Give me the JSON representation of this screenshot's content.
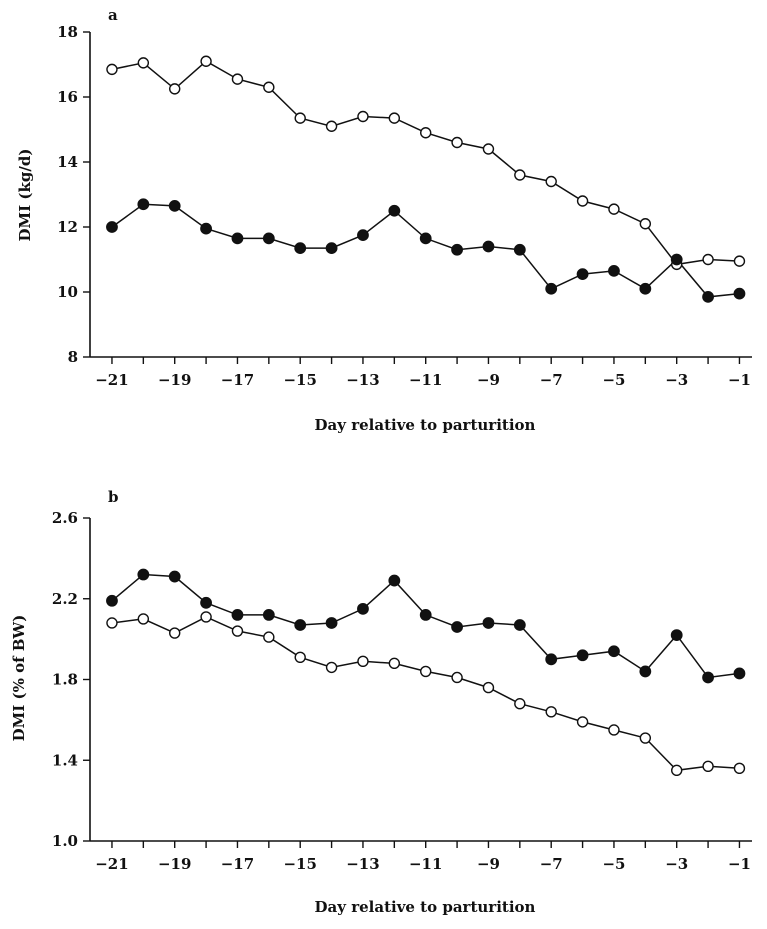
{
  "chart_data": [
    {
      "type": "line",
      "panel_label": "a",
      "xlabel": "Day relative to parturition",
      "ylabel": "DMI (kg/d)",
      "xlim": [
        -21.7,
        -0.6
      ],
      "ylim": [
        8,
        18
      ],
      "x_ticks": [
        -21,
        -20,
        -19,
        -18,
        -17,
        -16,
        -15,
        -14,
        -13,
        -12,
        -11,
        -10,
        -9,
        -8,
        -7,
        -6,
        -5,
        -4,
        -3,
        -2,
        -1
      ],
      "x_tick_labels": [
        "−21",
        "−19",
        "−17",
        "−15",
        "−13",
        "−11",
        "−9",
        "−7",
        "−5",
        "−3",
        "−1"
      ],
      "x_tick_label_values": [
        -21,
        -19,
        -17,
        -15,
        -13,
        -11,
        -9,
        -7,
        -5,
        -3,
        -1
      ],
      "y_ticks": [
        8,
        10,
        12,
        14,
        16,
        18
      ],
      "y_tick_labels": [
        "8",
        "10",
        "12",
        "14",
        "16",
        "18"
      ],
      "x": [
        -21,
        -20,
        -19,
        -18,
        -17,
        -16,
        -15,
        -14,
        -13,
        -12,
        -11,
        -10,
        -9,
        -8,
        -7,
        -6,
        -5,
        -4,
        -3,
        -2,
        -1
      ],
      "series": [
        {
          "marker": "open-circle",
          "values": [
            16.85,
            17.05,
            16.25,
            17.1,
            16.55,
            16.3,
            15.35,
            15.1,
            15.4,
            15.35,
            14.9,
            14.6,
            14.4,
            13.6,
            13.4,
            12.8,
            12.55,
            12.1,
            10.85,
            11.0,
            10.95
          ]
        },
        {
          "marker": "filled-circle",
          "values": [
            12.0,
            12.7,
            12.65,
            11.95,
            11.65,
            11.65,
            11.35,
            11.35,
            11.75,
            12.5,
            11.65,
            11.3,
            11.4,
            11.3,
            10.1,
            10.55,
            10.65,
            10.1,
            11.0,
            9.85,
            9.95
          ]
        }
      ]
    },
    {
      "type": "line",
      "panel_label": "b",
      "xlabel": "Day relative to parturition",
      "ylabel": "DMI (% of BW)",
      "xlim": [
        -21.7,
        -0.6
      ],
      "ylim": [
        1.0,
        2.6
      ],
      "x_ticks": [
        -21,
        -20,
        -19,
        -18,
        -17,
        -16,
        -15,
        -14,
        -13,
        -12,
        -11,
        -10,
        -9,
        -8,
        -7,
        -6,
        -5,
        -4,
        -3,
        -2,
        -1
      ],
      "x_tick_labels": [
        "−21",
        "−19",
        "−17",
        "−15",
        "−13",
        "−11",
        "−9",
        "−7",
        "−5",
        "−3",
        "−1"
      ],
      "x_tick_label_values": [
        -21,
        -19,
        -17,
        -15,
        -13,
        -11,
        -9,
        -7,
        -5,
        -3,
        -1
      ],
      "y_ticks": [
        1.0,
        1.4,
        1.8,
        2.2,
        2.6
      ],
      "y_tick_labels": [
        "1.0",
        "1.4",
        "1.8",
        "2.2",
        "2.6"
      ],
      "x": [
        -21,
        -20,
        -19,
        -18,
        -17,
        -16,
        -15,
        -14,
        -13,
        -12,
        -11,
        -10,
        -9,
        -8,
        -7,
        -6,
        -5,
        -4,
        -3,
        -2,
        -1
      ],
      "series": [
        {
          "marker": "filled-circle",
          "values": [
            2.19,
            2.32,
            2.31,
            2.18,
            2.12,
            2.12,
            2.07,
            2.08,
            2.15,
            2.29,
            2.12,
            2.06,
            2.08,
            2.07,
            1.9,
            1.92,
            1.94,
            1.84,
            2.02,
            1.81,
            1.83
          ]
        },
        {
          "marker": "open-circle",
          "values": [
            2.08,
            2.1,
            2.03,
            2.11,
            2.04,
            2.01,
            1.91,
            1.86,
            1.89,
            1.88,
            1.84,
            1.81,
            1.76,
            1.68,
            1.64,
            1.59,
            1.55,
            1.51,
            1.35,
            1.37,
            1.36
          ]
        }
      ]
    }
  ]
}
